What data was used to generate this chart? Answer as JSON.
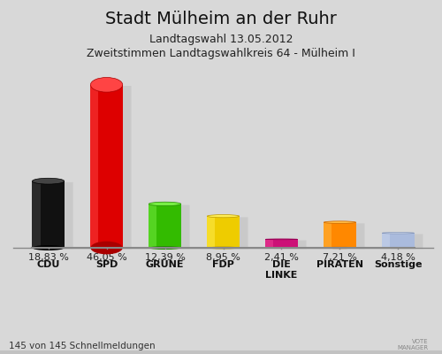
{
  "title": "Stadt Mülheim an der Ruhr",
  "subtitle1": "Landtagswahl 13.05.2012",
  "subtitle2": "Zweitstimmen Landtagswahlkreis 64 - Mülheim I",
  "footer": "145 von 145 Schnellmeldungen",
  "categories": [
    "CDU",
    "SPD",
    "GRÜNE",
    "FDP",
    "DIE\nLINKE",
    "PIRATEN",
    "Sonstige"
  ],
  "values": [
    18.83,
    46.05,
    12.39,
    8.95,
    2.41,
    7.21,
    4.18
  ],
  "labels": [
    "18,83 %",
    "46,05 %",
    "12,39 %",
    "8,95 %",
    "2,41 %",
    "7,21 %",
    "4,18 %"
  ],
  "bar_colors": [
    "#111111",
    "#dd0000",
    "#33bb00",
    "#eecc00",
    "#cc1177",
    "#ff8800",
    "#aabbdd"
  ],
  "bar_colors_light": [
    "#444444",
    "#ff4444",
    "#77ee44",
    "#ffee55",
    "#ee4499",
    "#ffbb44",
    "#ccd8ee"
  ],
  "bar_colors_dark": [
    "#000000",
    "#aa0000",
    "#228800",
    "#bb9900",
    "#990055",
    "#cc6600",
    "#8899bb"
  ],
  "background_color_top": "#f0f0f0",
  "background_color_bottom": "#c8c8c8",
  "ylim": [
    0,
    52
  ],
  "title_fontsize": 14,
  "subtitle_fontsize": 9,
  "label_fontsize": 8,
  "footer_fontsize": 7.5,
  "bar_width": 0.55
}
